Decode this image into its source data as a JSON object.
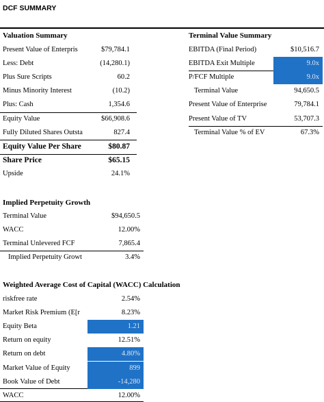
{
  "header": {
    "title": "DCF SUMMARY"
  },
  "sections": [
    {
      "title": "Valuation Summary",
      "rows": [
        {
          "label": "Present Value of Enterpris",
          "value": "$79,784.1"
        },
        {
          "label": "Less: Debt",
          "value": "(14,280.1)"
        },
        {
          "label": "Plus Sure Scripts",
          "value": "60.2"
        },
        {
          "label": "Minus Minority Interest",
          "value": "(10.2)"
        },
        {
          "label": "Plus: Cash",
          "value": "1,354.6"
        },
        {
          "label": "Equity Value",
          "value": "$66,908.6"
        },
        {
          "label": "Fully Diluted Shares Outsta",
          "value": "827.4"
        },
        {
          "label": "Equity Value Per Share",
          "value": "$80.87",
          "bold": true
        },
        {
          "label": "Share Price",
          "value": "$65.15",
          "bold": true
        },
        {
          "label": "Upside",
          "value": "24.1%"
        }
      ]
    },
    {
      "title": "Terminal Value Summary",
      "rows": [
        {
          "label": "EBITDA (Final Period)",
          "value": "$10,516.7"
        },
        {
          "label": "EBITDA Exit Multiple",
          "value": "9.0x",
          "fill": "#1f72c6"
        },
        {
          "label": "P/FCF Multiple",
          "value": "9.0x",
          "fill": "#1f72c6"
        },
        {
          "label": "Terminal Value",
          "value": "94,650.5",
          "indent": true
        },
        {
          "label": "Present Value of Enterprise",
          "value": "79,784.1"
        },
        {
          "label": "Present Value of TV",
          "value": "53,707.3"
        },
        {
          "label": "Terminal Value % of EV",
          "value": "67.3%",
          "indent": true
        }
      ]
    },
    {
      "title": "Implied Perpetuity Growth",
      "rows": [
        {
          "label": "Terminal Value",
          "value": "$94,650.5"
        },
        {
          "label": "WACC",
          "value": "12.00%"
        },
        {
          "label": "Terminal Unlevered FCF",
          "value": "7,865.4"
        },
        {
          "label": "Implied Perpetuity Growt",
          "value": "3.4%",
          "indent": true
        }
      ]
    },
    {
      "title": "Weighted Average Cost of Capital (WACC) Calculation",
      "rows": [
        {
          "label": "riskfree rate",
          "value": "2.54%"
        },
        {
          "label": "Market Risk Premium (E[r",
          "value": "8.23%"
        },
        {
          "label": "Equity Beta",
          "value": "1.21",
          "fill": "#1f72c6"
        },
        {
          "label": "Return on equity",
          "value": "12.51%"
        },
        {
          "label": "Return on debt",
          "value": "4.80%",
          "fill": "#1f72c6"
        },
        {
          "label": "Market Value of Equity",
          "value": "899",
          "fill": "#1f72c6"
        },
        {
          "label": "Book Value of Debt",
          "value": "-14,280",
          "fill": "#1f72c6"
        },
        {
          "label": "WACC",
          "value": "12.00%"
        }
      ]
    }
  ]
}
